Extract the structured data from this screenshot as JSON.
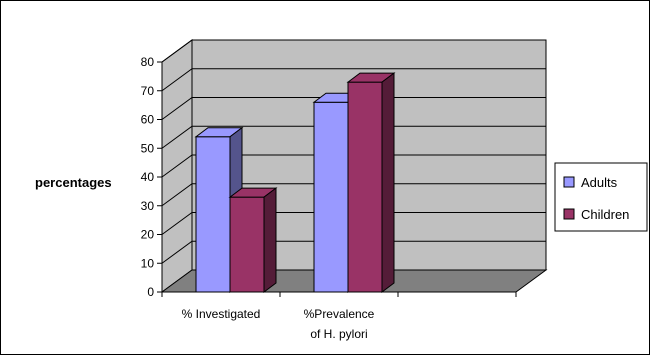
{
  "chart_data": {
    "type": "bar",
    "title": "",
    "xlabel": "",
    "ylabel": "percentages",
    "ylim": [
      0,
      80
    ],
    "yticks": [
      0,
      10,
      20,
      30,
      40,
      50,
      60,
      70,
      80
    ],
    "categories": [
      [
        "% Investigated"
      ],
      [
        "%Prevalence",
        "of H. pylori"
      ],
      [
        ""
      ]
    ],
    "series": [
      {
        "name": "Adults",
        "values": [
          54,
          66,
          null
        ],
        "color": "#9999ff"
      },
      {
        "name": "Children",
        "values": [
          33,
          73,
          null
        ],
        "color": "#993366"
      }
    ],
    "grid": true,
    "legend_position": "right",
    "wall_color": "#c0c0c0",
    "floor_color": "#808080",
    "style": "3d-clustered-column"
  }
}
